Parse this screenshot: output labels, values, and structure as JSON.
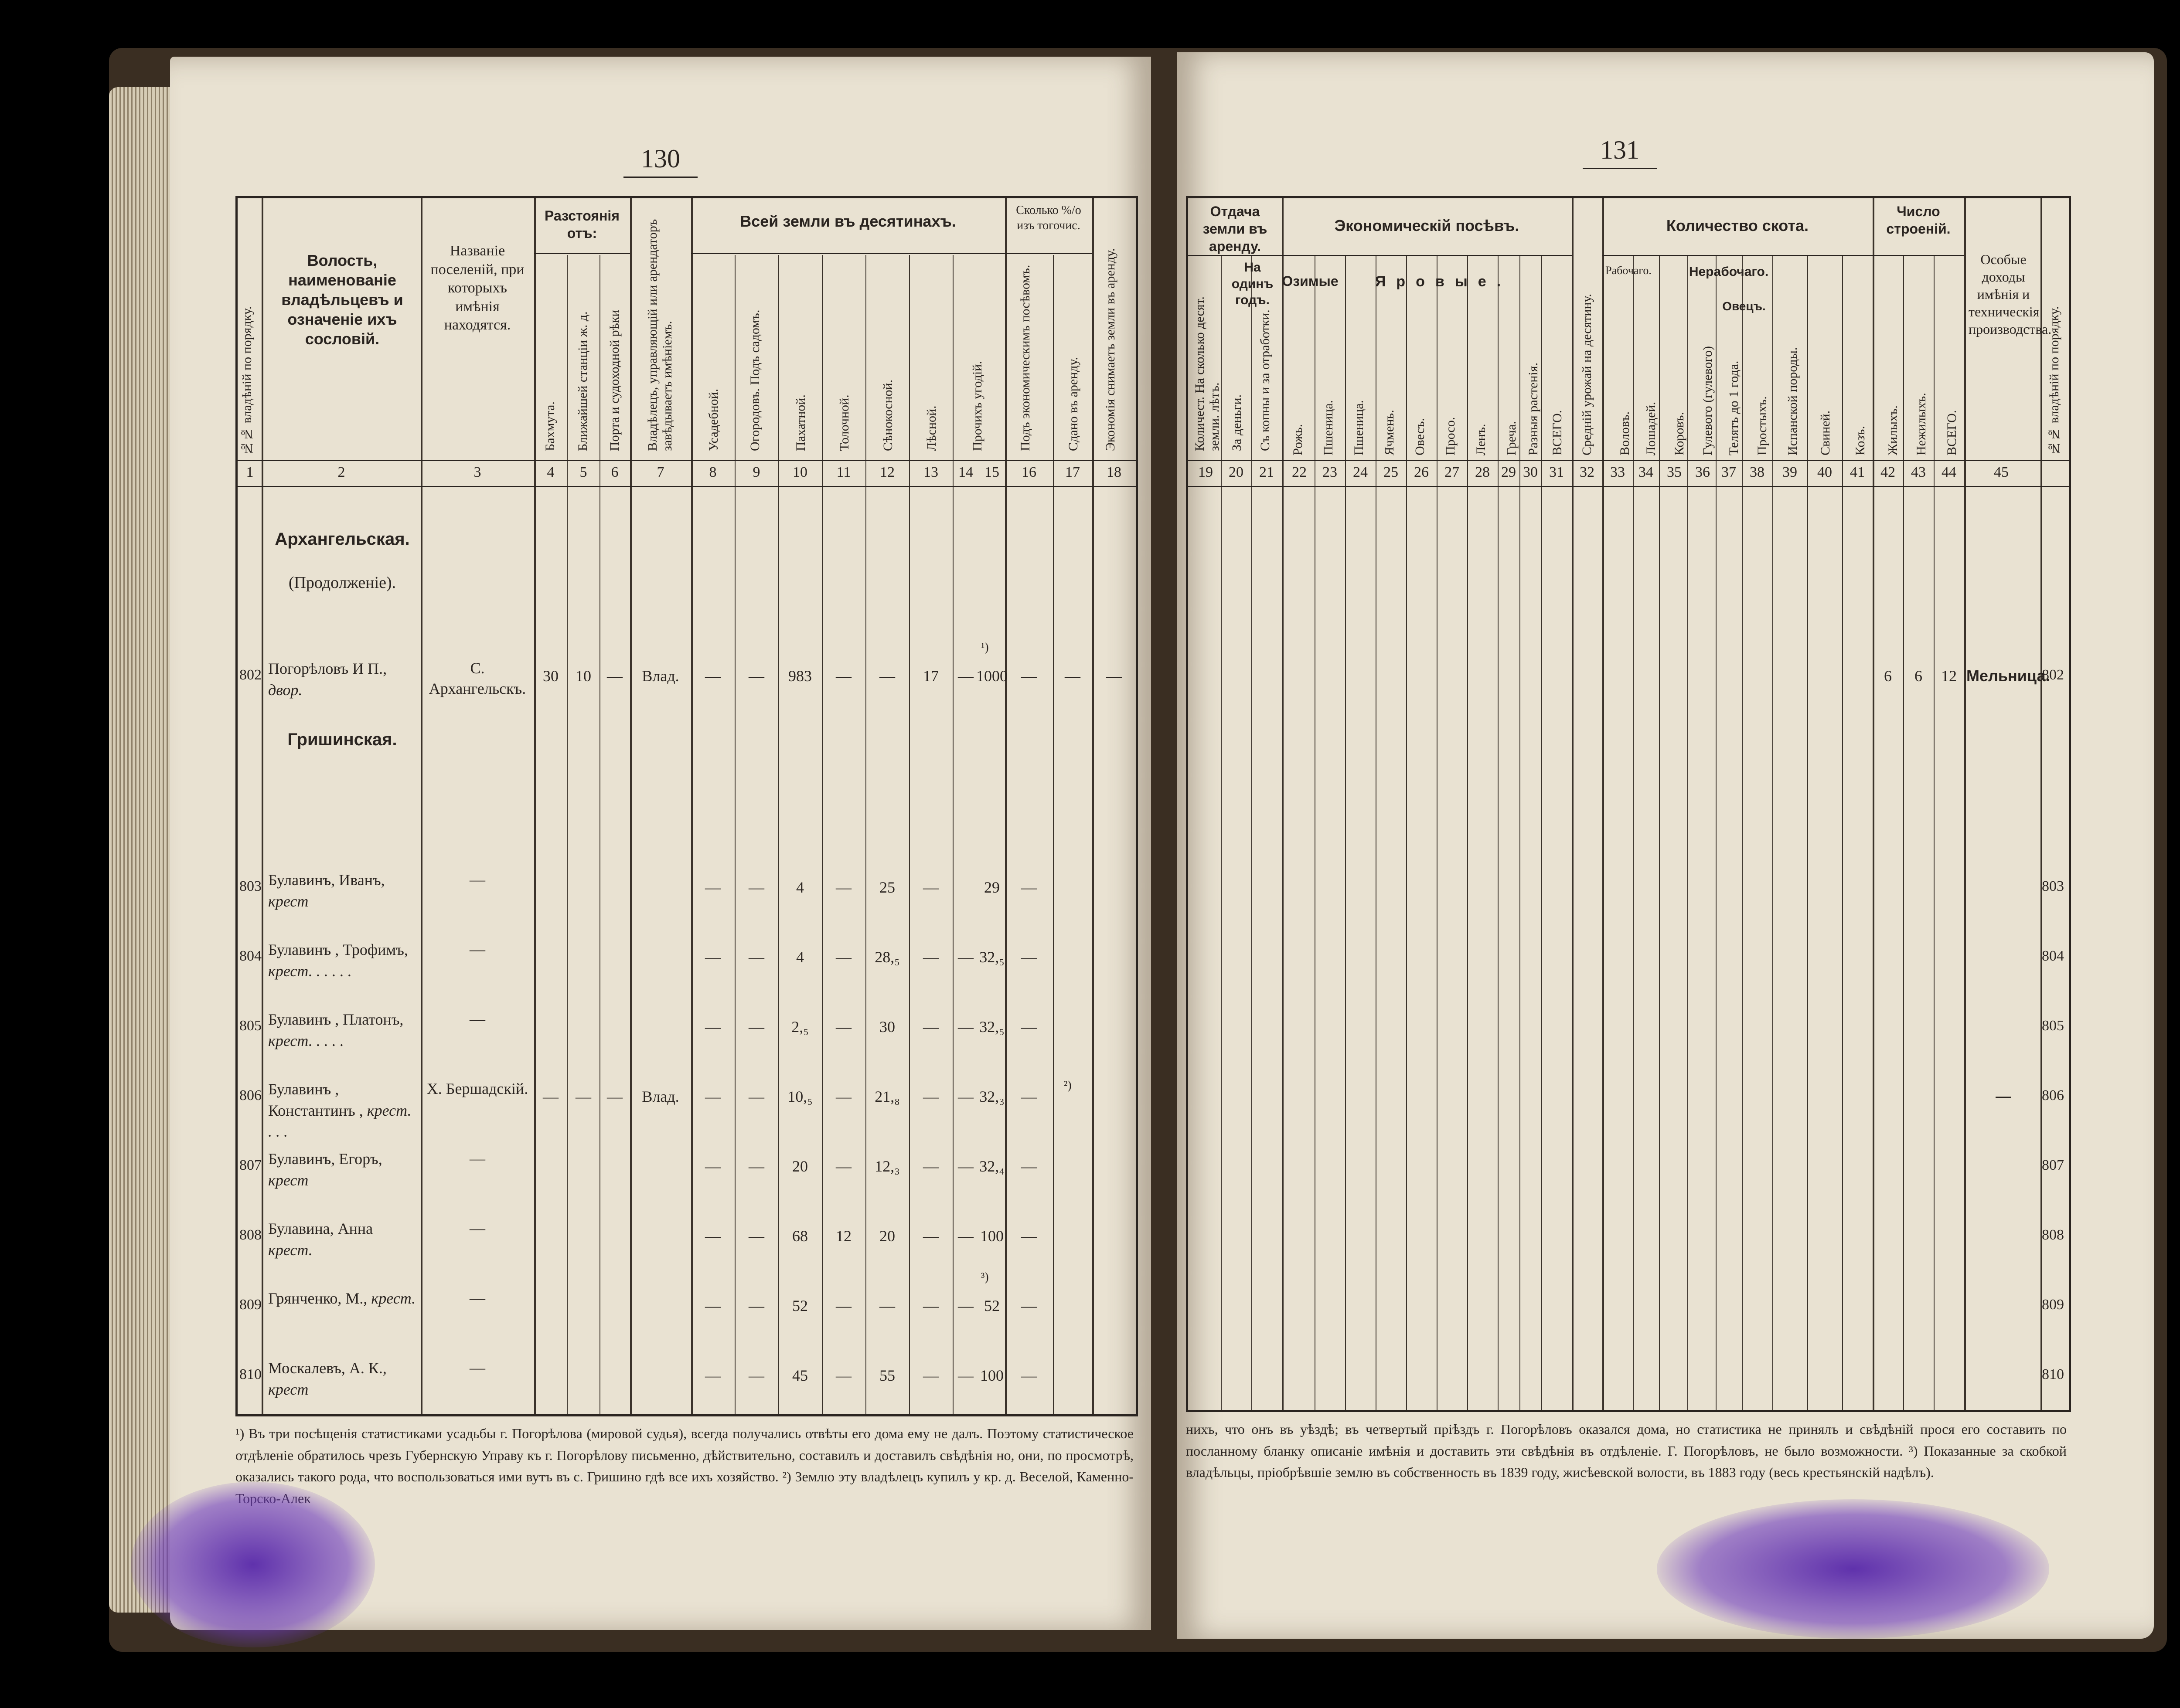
{
  "pages": {
    "left_number": "130",
    "right_number": "131"
  },
  "left_header": {
    "col1": "№№ владѣній по порядку.",
    "col2": "Волость, наименованіе владѣльцевъ и означеніе ихъ сословій.",
    "col3": "Названіе поселеній, при которыхъ имѣнія находятся.",
    "distance_group": "Разстоянія отъ:",
    "col4": "Бахмута.",
    "col5": "Ближайшей станціи ж. д.",
    "col6": "Порта и судоходной рѣки",
    "col7": "Владѣлецъ, управляющій или арендаторъ завѣдываетъ имѣніемъ.",
    "land_group": "Всей земли въ десятинахъ.",
    "col8": "Усадебной.",
    "col9": "Огородовъ. Подъ садомъ.",
    "col10": "Пахатной.",
    "col11": "Толочной.",
    "col12": "Сѣнокосной.",
    "col13": "Лѣсной.",
    "col14": "Прочихъ угодій.",
    "col15": "ВСЕГО.",
    "pct_group": "Сколько %/о изъ тогочис.",
    "col16": "Подъ экономическимъ посѣвомъ.",
    "col17": "Сдано въ аренду.",
    "col18": "Экономія снимаетъ земли въ аренду.",
    "numbers": [
      "1",
      "2",
      "3",
      "4",
      "5",
      "6",
      "7",
      "8",
      "9",
      "10",
      "11",
      "12",
      "13",
      "14",
      "15",
      "16",
      "17",
      "18"
    ]
  },
  "right_header": {
    "rent_group": "Отдача земли въ аренду.",
    "col19": "Количест. На сколько десят. земли. лѣтъ.",
    "one_year": "На одинъ годъ.",
    "col20": "За деньги.",
    "col21": "Съ копны и за отработки.",
    "sowing_group": "Экономическій посѣвъ.",
    "winter": "Озимые",
    "spring": "Яровые.",
    "col22": "Рожь.",
    "col23": "Пшеница.",
    "col24": "Пшеница.",
    "col25": "Ячмень.",
    "col26": "Овесъ.",
    "col27": "Просо.",
    "col28": "Ленъ.",
    "col29": "Греча.",
    "col30": "Разныя растенія.",
    "col31": "ВСЕГО.",
    "col32": "Средній урожай на десятину.",
    "cattle_group": "Количество скота.",
    "working": "Рабочаго.",
    "nonworking": "Нерабочаго.",
    "sheep": "Овецъ.",
    "col33": "Воловъ.",
    "col34": "Лошадей.",
    "col35": "Коровъ.",
    "col36": "Гулевого (гулевого)",
    "col37": "Телятъ до 1 года.",
    "col38": "Простыхъ.",
    "col39": "Испанской породы.",
    "col40": "Свиней.",
    "col41": "Козъ.",
    "buildings_group": "Число строеній.",
    "col42": "Жилыхъ.",
    "col43": "Нежилыхъ.",
    "col44": "ВСЕГО.",
    "col45": "Особые доходы имѣнія и техническія производства.",
    "col46": "№№ владѣній по порядку.",
    "numbers": [
      "19",
      "20",
      "21",
      "22",
      "23",
      "24",
      "25",
      "26",
      "27",
      "28",
      "29",
      "30",
      "31",
      "32",
      "33",
      "34",
      "35",
      "36",
      "37",
      "38",
      "39",
      "40",
      "41",
      "42",
      "43",
      "44",
      "45"
    ]
  },
  "sections": {
    "arkh": "Архангельская.",
    "arkh_sub": "(Продолженіе).",
    "grish": "Гришинская."
  },
  "rows": [
    {
      "no": "802",
      "owner": "Погорѣловъ И П.,",
      "estate": "двор.",
      "place": "С. Архангельскъ.",
      "d4": "30",
      "d5": "10",
      "d6": "—",
      "mgr": "Влад.",
      "c8": "—",
      "c9": "—",
      "c10": "983",
      "c11": "—",
      "c12": "—",
      "c13": "17",
      "c14": "—",
      "c15": "1000",
      "note15": "¹)",
      "c16": "—",
      "c17": "—",
      "c18": "—",
      "r42": "6",
      "r43": "6",
      "r44": "12",
      "r45": "Мельница."
    },
    {
      "no": "803",
      "owner": "Булавинъ, Иванъ,",
      "estate": "крест",
      "place": "—",
      "c8": "—",
      "c9": "—",
      "c10": "4",
      "c11": "—",
      "c12": "25",
      "c13": "—",
      "c14": "",
      "c15": "29",
      "c16": "—"
    },
    {
      "no": "804",
      "owner": "Булавинъ , Трофимъ,",
      "estate": "крест. . . . . .",
      "place": "—",
      "c8": "—",
      "c9": "—",
      "c10": "4",
      "c11": "—",
      "c12": "28,₅",
      "c13": "—",
      "c14": "—",
      "c15": "32,₅",
      "c16": "—"
    },
    {
      "no": "805",
      "owner": "Булавинъ , Платонъ,",
      "estate": "крест. . . . .",
      "place": "—",
      "c8": "—",
      "c9": "—",
      "c10": "2,₅",
      "c11": "—",
      "c12": "30",
      "c13": "—",
      "c14": "—",
      "c15": "32,₅",
      "c16": "—"
    },
    {
      "no": "806",
      "owner": "Булавинъ , Константинъ ,",
      "estate": "крест. . . .",
      "place": "Х. Бершадскій.",
      "d4": "—",
      "d5": "—",
      "d6": "—",
      "mgr": "Влад.",
      "c8": "—",
      "c9": "—",
      "c10": "10,₅",
      "c11": "—",
      "c12": "21,₈",
      "c13": "—",
      "c14": "—",
      "c15": "32,₃",
      "c16": "—",
      "note17": "²)",
      "r45": "—"
    },
    {
      "no": "807",
      "owner": "Булавинъ, Егоръ,",
      "estate": "крест",
      "place": "—",
      "c8": "—",
      "c9": "—",
      "c10": "20",
      "c11": "—",
      "c12": "12,₃",
      "c13": "—",
      "c14": "—",
      "c15": "32,₄",
      "c16": "—"
    },
    {
      "no": "808",
      "owner": "Булавина, Анна",
      "estate": "крест.",
      "place": "—",
      "c8": "—",
      "c9": "—",
      "c10": "68",
      "c11": "12",
      "c12": "20",
      "c13": "—",
      "c14": "—",
      "c15": "100",
      "c16": "—"
    },
    {
      "no": "809",
      "owner": "Грянченко, М.,",
      "estate": "крест.",
      "place": "—",
      "c8": "—",
      "c9": "—",
      "c10": "52",
      "c11": "—",
      "c12": "—",
      "c13": "—",
      "c14": "—",
      "c15": "52",
      "note15": "³)",
      "c16": "—"
    },
    {
      "no": "810",
      "owner": "Москалевъ, А. К.,",
      "estate": "крест",
      "place": "—",
      "c8": "—",
      "c9": "—",
      "c10": "45",
      "c11": "—",
      "c12": "55",
      "c13": "—",
      "c14": "—",
      "c15": "100",
      "c16": "—"
    }
  ],
  "footnotes": {
    "left": "¹) Въ три посѣщенія статистиками усадьбы г. Погорѣлова (мировой судья), всегда получались отвѣты его дома ему не далъ. Поэтому статистическое отдѣленіе обратилось чрезъ Губернскую Управу къ г. Погорѣлову письменно, дѣйствительно, составилъ и доставилъ свѣдѣнія но, они, по просмотрѣ, оказались такого рода, что воспользоваться ими вутъ въ с. Гришино гдѣ все ихъ хозяйство. ²) Землю эту владѣлецъ купилъ у кр. д. Веселой, Каменно-Торско-Алек",
    "right": "нихъ, что онъ въ уѣздѣ; въ четвертый пріѣздъ г. Погорѣловъ оказался дома, но статистика не принялъ и свѣдѣній прося его составить по посланному бланку описаніе имѣнія и доставить эти свѣдѣнія въ отдѣленіе. Г. Погорѣловъ, не было возможности. ³) Показанные за скобкой владѣльцы, пріобрѣвшіе землю въ собственность въ 1839 году, жисѣевской волости, въ 1883 году (весь крестьянскій надѣлъ)."
  },
  "colors": {
    "paper": "#e9e2d2",
    "ink_stain": "#5a2aaa",
    "text": "#2a2420"
  }
}
